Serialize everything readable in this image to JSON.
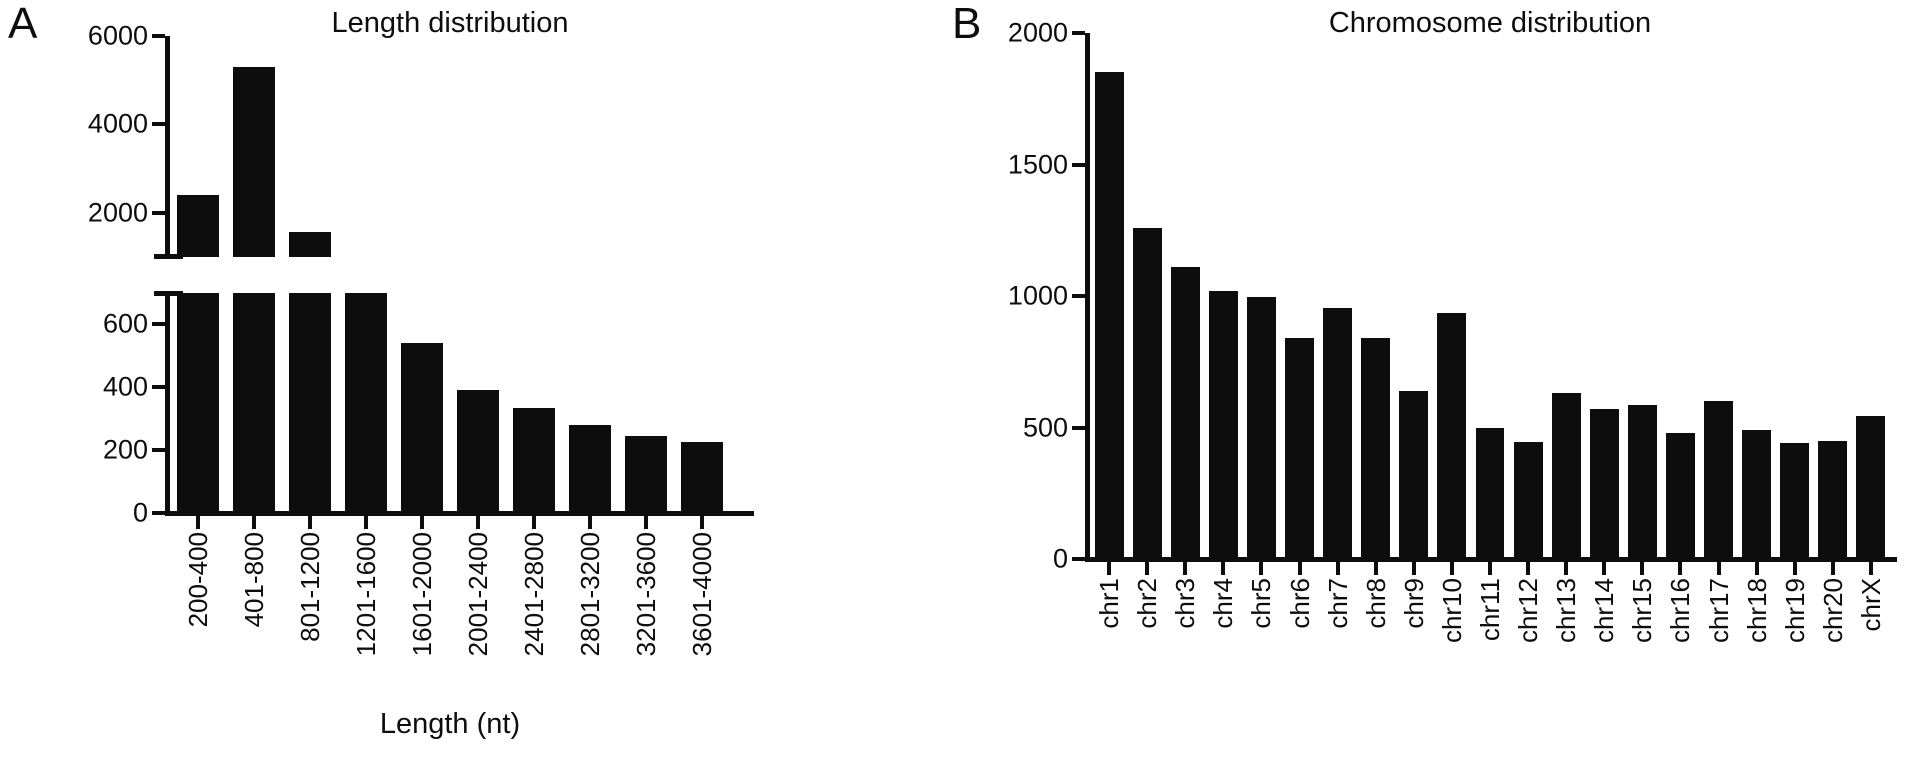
{
  "figure": {
    "background": "#ffffff",
    "ink": "#0d0d0d"
  },
  "panels": [
    {
      "letter": "A",
      "title": "Length distribution",
      "xlabel": "Length (nt)"
    },
    {
      "letter": "B",
      "title": "Chromosome distribution"
    }
  ],
  "chart_data": [
    {
      "type": "bar",
      "title": "Length distribution",
      "xlabel": "Length (nt)",
      "categories": [
        "200-400",
        "401-800",
        "801-1200",
        "1201-1600",
        "1601-2000",
        "2001-2400",
        "2401-2800",
        "2801-3200",
        "3201-3600",
        "3601-4000"
      ],
      "values": [
        2400,
        5300,
        1570,
        850,
        540,
        390,
        335,
        280,
        245,
        225
      ],
      "bar_color": "#0d0d0d",
      "grid": false,
      "broken_y_axis": {
        "upper_segment": {
          "range": [
            1000,
            6000
          ],
          "ticks": [
            2000,
            4000,
            6000
          ]
        },
        "lower_segment": {
          "range": [
            0,
            700
          ],
          "ticks": [
            0,
            200,
            400,
            600
          ]
        },
        "note": "bars taller than a segment are clipped flat at the axis break"
      }
    },
    {
      "type": "bar",
      "title": "Chromosome distribution",
      "categories": [
        "chr1",
        "chr2",
        "chr3",
        "chr4",
        "chr5",
        "chr6",
        "chr7",
        "chr8",
        "chr9",
        "chr10",
        "chr11",
        "chr12",
        "chr13",
        "chr14",
        "chr15",
        "chr16",
        "chr17",
        "chr18",
        "chr19",
        "chr20",
        "chrX"
      ],
      "values": [
        1850,
        1260,
        1110,
        1020,
        995,
        840,
        955,
        840,
        640,
        935,
        500,
        445,
        630,
        570,
        585,
        480,
        600,
        490,
        440,
        450,
        545
      ],
      "bar_color": "#0d0d0d",
      "grid": false,
      "ylim": [
        0,
        2000
      ],
      "yticks": [
        0,
        500,
        1000,
        1500,
        2000
      ]
    }
  ]
}
